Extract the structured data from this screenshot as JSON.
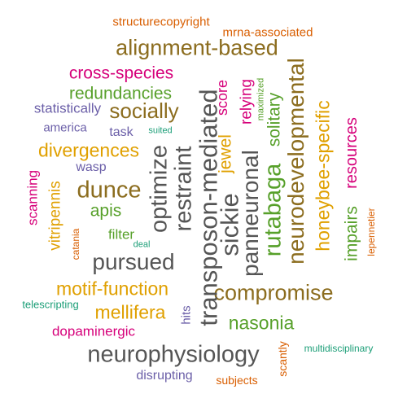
{
  "palette": {
    "orange": "#d95f02",
    "olive": "#8c6d1f",
    "magenta": "#d6007a",
    "green": "#57a02a",
    "purple": "#6b5fa8",
    "gold": "#e0a000",
    "gray": "#555555",
    "teal": "#1b9e77",
    "brown": "#a6761d"
  },
  "words": [
    {
      "text": "structurecopyright",
      "color": "orange"
    },
    {
      "text": "mrna-associated",
      "color": "orange"
    },
    {
      "text": "alignment-based",
      "color": "olive"
    },
    {
      "text": "cross-species",
      "color": "magenta"
    },
    {
      "text": "redundancies",
      "color": "green"
    },
    {
      "text": "statistically",
      "color": "purple"
    },
    {
      "text": "socially",
      "color": "olive"
    },
    {
      "text": "america",
      "color": "purple"
    },
    {
      "text": "task",
      "color": "purple"
    },
    {
      "text": "suited",
      "color": "teal"
    },
    {
      "text": "divergences",
      "color": "gold"
    },
    {
      "text": "wasp",
      "color": "purple"
    },
    {
      "text": "dunce",
      "color": "olive"
    },
    {
      "text": "apis",
      "color": "green"
    },
    {
      "text": "filter",
      "color": "green"
    },
    {
      "text": "deal",
      "color": "teal"
    },
    {
      "text": "pursued",
      "color": "gray"
    },
    {
      "text": "motif-function",
      "color": "gold"
    },
    {
      "text": "telescripting",
      "color": "teal"
    },
    {
      "text": "mellifera",
      "color": "gold"
    },
    {
      "text": "dopaminergic",
      "color": "magenta"
    },
    {
      "text": "compromise",
      "color": "olive"
    },
    {
      "text": "nasonia",
      "color": "green"
    },
    {
      "text": "neurophysiology",
      "color": "gray"
    },
    {
      "text": "multidisciplinary",
      "color": "teal"
    },
    {
      "text": "disrupting",
      "color": "purple"
    },
    {
      "text": "subjects",
      "color": "orange"
    },
    {
      "text": "scanning",
      "color": "magenta"
    },
    {
      "text": "vitripennis",
      "color": "gold"
    },
    {
      "text": "catania",
      "color": "orange"
    },
    {
      "text": "optimize",
      "color": "gray"
    },
    {
      "text": "restraint",
      "color": "gray"
    },
    {
      "text": "transposon-mediated",
      "color": "gray"
    },
    {
      "text": "sickie",
      "color": "gray"
    },
    {
      "text": "jewel",
      "color": "gold"
    },
    {
      "text": "score",
      "color": "magenta"
    },
    {
      "text": "panneuronal",
      "color": "gray"
    },
    {
      "text": "relying",
      "color": "magenta"
    },
    {
      "text": "maximized",
      "color": "green"
    },
    {
      "text": "solitary",
      "color": "green"
    },
    {
      "text": "rutabaga",
      "color": "green"
    },
    {
      "text": "neurodevelopmental",
      "color": "olive"
    },
    {
      "text": "honeybee-specific",
      "color": "gold"
    },
    {
      "text": "resources",
      "color": "magenta"
    },
    {
      "text": "impairs",
      "color": "green"
    },
    {
      "text": "lepennetier",
      "color": "orange"
    },
    {
      "text": "hits",
      "color": "purple"
    },
    {
      "text": "scantly",
      "color": "orange"
    }
  ]
}
